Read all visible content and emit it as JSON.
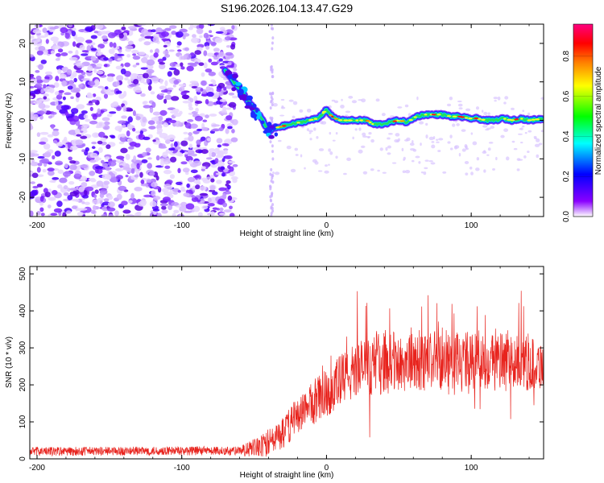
{
  "figure_title": "S196.2026.104.13.47.G29",
  "chart_data": [
    {
      "type": "heatmap",
      "title": "S196.2026.104.13.47.G29",
      "xlabel": "Height of straight line (km)",
      "ylabel": "Frequency (Hz)",
      "xlim": [
        -205,
        150
      ],
      "ylim": [
        -25,
        25
      ],
      "xticks": [
        -200,
        -100,
        0,
        100
      ],
      "yticks": [
        -20,
        -10,
        0,
        10,
        20
      ],
      "colorbar": {
        "label": "Normalized spectral amplitude",
        "range": [
          0.0,
          0.96
        ],
        "ticks": [
          0.0,
          0.2,
          0.4,
          0.6,
          0.8
        ],
        "colors": [
          "#ffffff",
          "#8a00ff",
          "#0000ff",
          "#00ffff",
          "#00ff00",
          "#ffff00",
          "#ff8000",
          "#ff0000",
          "#ff0080"
        ]
      },
      "noise_region_km": [
        -205,
        -63
      ],
      "signal_trace": {
        "x_km": [
          -70,
          -64,
          -60,
          -56,
          -52,
          -48,
          -44,
          -40,
          -36,
          -30,
          -24,
          -18,
          -12,
          -6,
          -2,
          0,
          2,
          6,
          10,
          16,
          22,
          28,
          32,
          38,
          44,
          50,
          56,
          62,
          68,
          74,
          80,
          86,
          92,
          98,
          104,
          110,
          116,
          122,
          128,
          134,
          140,
          146,
          150
        ],
        "freq_hz": [
          13,
          10,
          8,
          6,
          4,
          2,
          0,
          -3,
          -2,
          -1.5,
          -1,
          -0.5,
          0,
          0.5,
          2,
          3,
          1.5,
          0.5,
          0,
          0,
          0,
          0,
          -1,
          -1,
          -0.5,
          0,
          -0.5,
          1,
          1.5,
          1.5,
          1.5,
          1,
          1,
          0.5,
          0.5,
          0,
          0,
          0.5,
          0,
          0.5,
          0,
          0.3,
          0.3
        ]
      }
    },
    {
      "type": "line",
      "title": "",
      "xlabel": "Height of straight line (km)",
      "ylabel": "SNR (10 * v/v)",
      "xlim": [
        -205,
        150
      ],
      "ylim": [
        0,
        520
      ],
      "xticks": [
        -200,
        -100,
        0,
        100
      ],
      "yticks": [
        0,
        100,
        200,
        300,
        400,
        500
      ],
      "color": "#e8231d",
      "envelope": {
        "x_km": [
          -205,
          -60,
          -45,
          -30,
          -20,
          0,
          20,
          40,
          60,
          80,
          100,
          120,
          150
        ],
        "mean_snr": [
          20,
          22,
          30,
          70,
          120,
          180,
          240,
          260,
          260,
          270,
          265,
          260,
          255
        ],
        "spread": [
          12,
          12,
          35,
          45,
          50,
          70,
          80,
          85,
          80,
          80,
          80,
          80,
          70
        ]
      }
    }
  ]
}
